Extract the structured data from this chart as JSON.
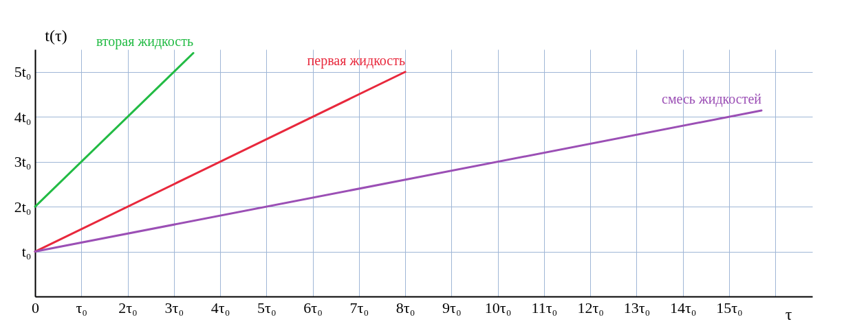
{
  "chart_data": {
    "type": "line",
    "xlabel": "τ",
    "ylabel": "t(τ)",
    "grid": true,
    "xlim": [
      0,
      16.8
    ],
    "ylim": [
      0,
      5.5
    ],
    "xticks": [
      {
        "value": 0,
        "label": "0"
      },
      {
        "value": 1,
        "label": "τ₀"
      },
      {
        "value": 2,
        "label": "2τ₀"
      },
      {
        "value": 3,
        "label": "3τ₀"
      },
      {
        "value": 4,
        "label": "4τ₀"
      },
      {
        "value": 5,
        "label": "5τ₀"
      },
      {
        "value": 6,
        "label": "6τ₀"
      },
      {
        "value": 7,
        "label": "7τ₀"
      },
      {
        "value": 8,
        "label": "8τ₀"
      },
      {
        "value": 9,
        "label": "9τ₀"
      },
      {
        "value": 10,
        "label": "10τ₀"
      },
      {
        "value": 11,
        "label": "11τ₀"
      },
      {
        "value": 12,
        "label": "12τ₀"
      },
      {
        "value": 13,
        "label": "13τ₀"
      },
      {
        "value": 14,
        "label": "14τ₀"
      },
      {
        "value": 15,
        "label": "15τ₀"
      },
      {
        "value": 16,
        "label": null
      }
    ],
    "yticks": [
      {
        "value": 1,
        "label": "t₀"
      },
      {
        "value": 2,
        "label": "2t₀"
      },
      {
        "value": 3,
        "label": "3t₀"
      },
      {
        "value": 4,
        "label": "4t₀"
      },
      {
        "value": 5,
        "label": "5t₀"
      }
    ],
    "series": [
      {
        "name": "вторая жидкость",
        "color": "#22bb44",
        "x": [
          0,
          3.42
        ],
        "values": [
          2,
          5.42
        ]
      },
      {
        "name": "первая жидкость",
        "color": "#e8283c",
        "x": [
          0,
          8
        ],
        "values": [
          1,
          5
        ]
      },
      {
        "name": "смесь жидкостей",
        "color": "#9b4fb5",
        "x": [
          0,
          15.7
        ],
        "values": [
          1,
          4.14
        ]
      }
    ]
  }
}
